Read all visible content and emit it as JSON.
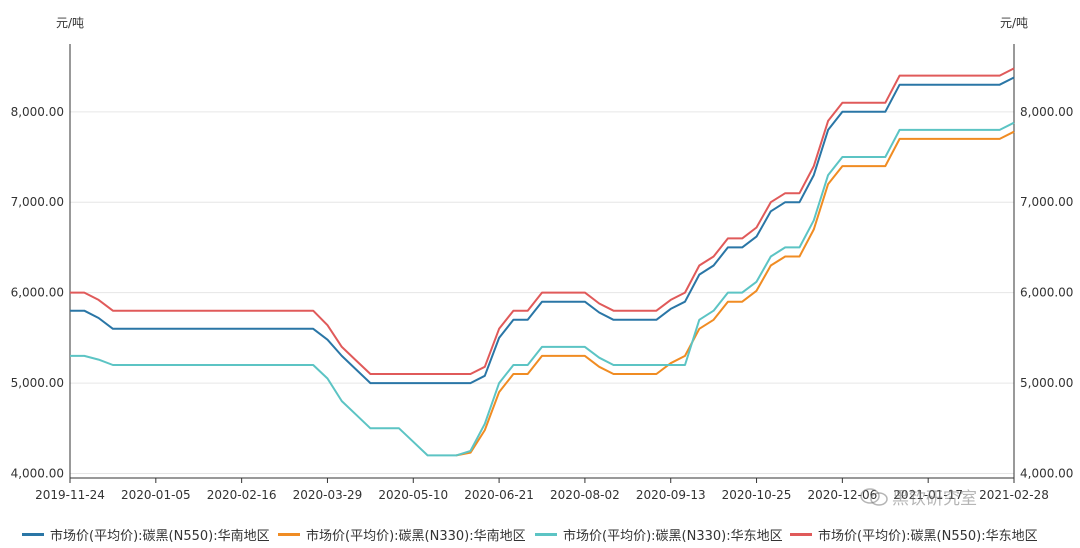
{
  "unit_left": "元/吨",
  "unit_right": "元/吨",
  "watermark_text": "黑钦研究室",
  "colors": {
    "s1": "#2a76a6",
    "s2": "#f08c23",
    "s3": "#5cc4c4",
    "s4": "#e05a5a",
    "axis": "#333333",
    "grid": "#e6e6e6"
  },
  "chart_data": {
    "type": "line",
    "title": "",
    "xlabel": "",
    "ylabel": "元/吨",
    "ylim": [
      3950,
      8750
    ],
    "y_ticks": [
      4000,
      5000,
      6000,
      7000,
      8000
    ],
    "y_tick_labels": [
      "4,000.00",
      "5,000.00",
      "6,000.00",
      "7,000.00",
      "8,000.00"
    ],
    "x_tick_labels": [
      "2019-11-24",
      "2020-01-05",
      "2020-02-16",
      "2020-03-29",
      "2020-05-10",
      "2020-06-21",
      "2020-08-02",
      "2020-09-13",
      "2020-10-25",
      "2020-12-06",
      "2021-01-17",
      "2021-02-28"
    ],
    "x": [
      "2019-11-24",
      "2019-12-01",
      "2019-12-08",
      "2019-12-15",
      "2019-12-22",
      "2019-12-29",
      "2020-01-05",
      "2020-01-12",
      "2020-01-19",
      "2020-01-26",
      "2020-02-02",
      "2020-02-09",
      "2020-02-16",
      "2020-02-23",
      "2020-03-01",
      "2020-03-08",
      "2020-03-15",
      "2020-03-22",
      "2020-03-29",
      "2020-04-05",
      "2020-04-12",
      "2020-04-19",
      "2020-04-26",
      "2020-05-03",
      "2020-05-10",
      "2020-05-17",
      "2020-05-24",
      "2020-05-31",
      "2020-06-07",
      "2020-06-14",
      "2020-06-21",
      "2020-06-28",
      "2020-07-05",
      "2020-07-12",
      "2020-07-19",
      "2020-07-26",
      "2020-08-02",
      "2020-08-09",
      "2020-08-16",
      "2020-08-23",
      "2020-08-30",
      "2020-09-06",
      "2020-09-13",
      "2020-09-20",
      "2020-09-27",
      "2020-10-04",
      "2020-10-11",
      "2020-10-18",
      "2020-10-25",
      "2020-11-01",
      "2020-11-08",
      "2020-11-15",
      "2020-11-22",
      "2020-11-29",
      "2020-12-06",
      "2020-12-13",
      "2020-12-20",
      "2020-12-27",
      "2021-01-03",
      "2021-01-10",
      "2021-01-17",
      "2021-01-24",
      "2021-01-31",
      "2021-02-07",
      "2021-02-14",
      "2021-02-21",
      "2021-02-28"
    ],
    "series": [
      {
        "name": "市场价(平均价):碳黑(N550):华南地区",
        "color": "#2a76a6",
        "values": [
          5800,
          5800,
          5720,
          5600,
          5600,
          5600,
          5600,
          5600,
          5600,
          5600,
          5600,
          5600,
          5600,
          5600,
          5600,
          5600,
          5600,
          5600,
          5480,
          5300,
          5150,
          5000,
          5000,
          5000,
          5000,
          5000,
          5000,
          5000,
          5000,
          5080,
          5500,
          5700,
          5700,
          5900,
          5900,
          5900,
          5900,
          5780,
          5700,
          5700,
          5700,
          5700,
          5820,
          5900,
          6200,
          6300,
          6500,
          6500,
          6620,
          6900,
          7000,
          7000,
          7300,
          7800,
          8000,
          8000,
          8000,
          8000,
          8300,
          8300,
          8300,
          8300,
          8300,
          8300,
          8300,
          8300,
          8380
        ]
      },
      {
        "name": "市场价(平均价):碳黑(N330):华南地区",
        "color": "#f08c23",
        "values": [
          null,
          null,
          null,
          null,
          null,
          null,
          null,
          null,
          null,
          null,
          null,
          null,
          null,
          null,
          null,
          null,
          null,
          null,
          null,
          null,
          null,
          null,
          null,
          null,
          null,
          null,
          null,
          4200,
          4230,
          4480,
          4900,
          5100,
          5100,
          5300,
          5300,
          5300,
          5300,
          5180,
          5100,
          5100,
          5100,
          5100,
          5220,
          5300,
          5600,
          5700,
          5900,
          5900,
          6020,
          6300,
          6400,
          6400,
          6700,
          7200,
          7400,
          7400,
          7400,
          7400,
          7700,
          7700,
          7700,
          7700,
          7700,
          7700,
          7700,
          7700,
          7780
        ]
      },
      {
        "name": "市场价(平均价):碳黑(N330):华东地区",
        "color": "#5cc4c4",
        "values": [
          5300,
          5300,
          5260,
          5200,
          5200,
          5200,
          5200,
          5200,
          5200,
          5200,
          5200,
          5200,
          5200,
          5200,
          5200,
          5200,
          5200,
          5200,
          5050,
          4800,
          4650,
          4500,
          4500,
          4500,
          4350,
          4200,
          4200,
          4200,
          4250,
          4550,
          5000,
          5200,
          5200,
          5400,
          5400,
          5400,
          5400,
          5280,
          5200,
          5200,
          5200,
          5200,
          5200,
          5200,
          5700,
          5800,
          6000,
          6000,
          6120,
          6400,
          6500,
          6500,
          6800,
          7300,
          7500,
          7500,
          7500,
          7500,
          7800,
          7800,
          7800,
          7800,
          7800,
          7800,
          7800,
          7800,
          7880
        ]
      },
      {
        "name": "市场价(平均价):碳黑(N550):华东地区",
        "color": "#e05a5a",
        "values": [
          6000,
          6000,
          5920,
          5800,
          5800,
          5800,
          5800,
          5800,
          5800,
          5800,
          5800,
          5800,
          5800,
          5800,
          5800,
          5800,
          5800,
          5800,
          5640,
          5400,
          5250,
          5100,
          5100,
          5100,
          5100,
          5100,
          5100,
          5100,
          5100,
          5180,
          5600,
          5800,
          5800,
          6000,
          6000,
          6000,
          6000,
          5880,
          5800,
          5800,
          5800,
          5800,
          5920,
          6000,
          6300,
          6400,
          6600,
          6600,
          6720,
          7000,
          7100,
          7100,
          7400,
          7900,
          8100,
          8100,
          8100,
          8100,
          8400,
          8400,
          8400,
          8400,
          8400,
          8400,
          8400,
          8400,
          8480
        ]
      }
    ],
    "grid": true,
    "legend_position": "bottom"
  }
}
